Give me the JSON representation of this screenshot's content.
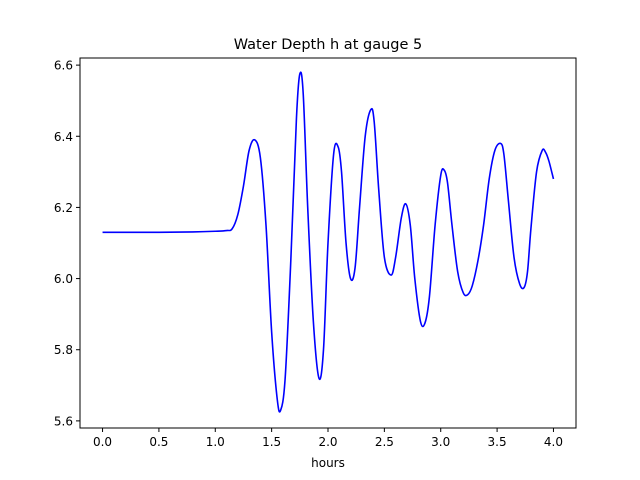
{
  "chart_data": {
    "type": "line",
    "title": "Water Depth h at gauge 5",
    "xlabel": "hours",
    "ylabel": "",
    "xlim": [
      -0.2,
      4.2
    ],
    "ylim": [
      5.58,
      6.62
    ],
    "xticks": [
      0.0,
      0.5,
      1.0,
      1.5,
      2.0,
      2.5,
      3.0,
      3.5,
      4.0
    ],
    "xtick_labels": [
      "0.0",
      "0.5",
      "1.0",
      "1.5",
      "2.0",
      "2.5",
      "3.0",
      "3.5",
      "4.0"
    ],
    "yticks": [
      5.6,
      5.8,
      6.0,
      6.2,
      6.4,
      6.6
    ],
    "ytick_labels": [
      "5.6",
      "5.8",
      "6.0",
      "6.2",
      "6.4",
      "6.6"
    ],
    "grid": false,
    "series": [
      {
        "color": "#0000ff",
        "x": [
          0.0,
          0.5,
          0.8,
          1.0,
          1.1,
          1.15,
          1.2,
          1.25,
          1.3,
          1.35,
          1.4,
          1.45,
          1.5,
          1.55,
          1.58,
          1.62,
          1.67,
          1.72,
          1.75,
          1.78,
          1.82,
          1.87,
          1.92,
          1.96,
          2.0,
          2.05,
          2.09,
          2.12,
          2.16,
          2.2,
          2.24,
          2.28,
          2.33,
          2.38,
          2.41,
          2.45,
          2.5,
          2.56,
          2.6,
          2.65,
          2.69,
          2.73,
          2.77,
          2.82,
          2.86,
          2.9,
          2.95,
          3.0,
          3.03,
          3.06,
          3.1,
          3.15,
          3.2,
          3.24,
          3.28,
          3.33,
          3.38,
          3.43,
          3.48,
          3.53,
          3.56,
          3.6,
          3.65,
          3.7,
          3.74,
          3.77,
          3.8,
          3.85,
          3.9,
          3.93,
          3.96,
          4.0
        ],
        "y": [
          6.13,
          6.13,
          6.131,
          6.133,
          6.135,
          6.14,
          6.18,
          6.26,
          6.36,
          6.39,
          6.34,
          6.15,
          5.85,
          5.66,
          5.63,
          5.72,
          6.05,
          6.45,
          6.575,
          6.52,
          6.2,
          5.88,
          5.72,
          5.8,
          6.1,
          6.35,
          6.37,
          6.3,
          6.1,
          6.0,
          6.03,
          6.2,
          6.4,
          6.475,
          6.44,
          6.25,
          6.06,
          6.01,
          6.06,
          6.17,
          6.21,
          6.15,
          6.0,
          5.88,
          5.875,
          5.95,
          6.15,
          6.29,
          6.305,
          6.27,
          6.15,
          6.02,
          5.96,
          5.955,
          5.98,
          6.05,
          6.15,
          6.28,
          6.36,
          6.38,
          6.35,
          6.22,
          6.06,
          5.985,
          5.975,
          6.02,
          6.14,
          6.3,
          6.36,
          6.355,
          6.33,
          6.28
        ]
      }
    ]
  }
}
